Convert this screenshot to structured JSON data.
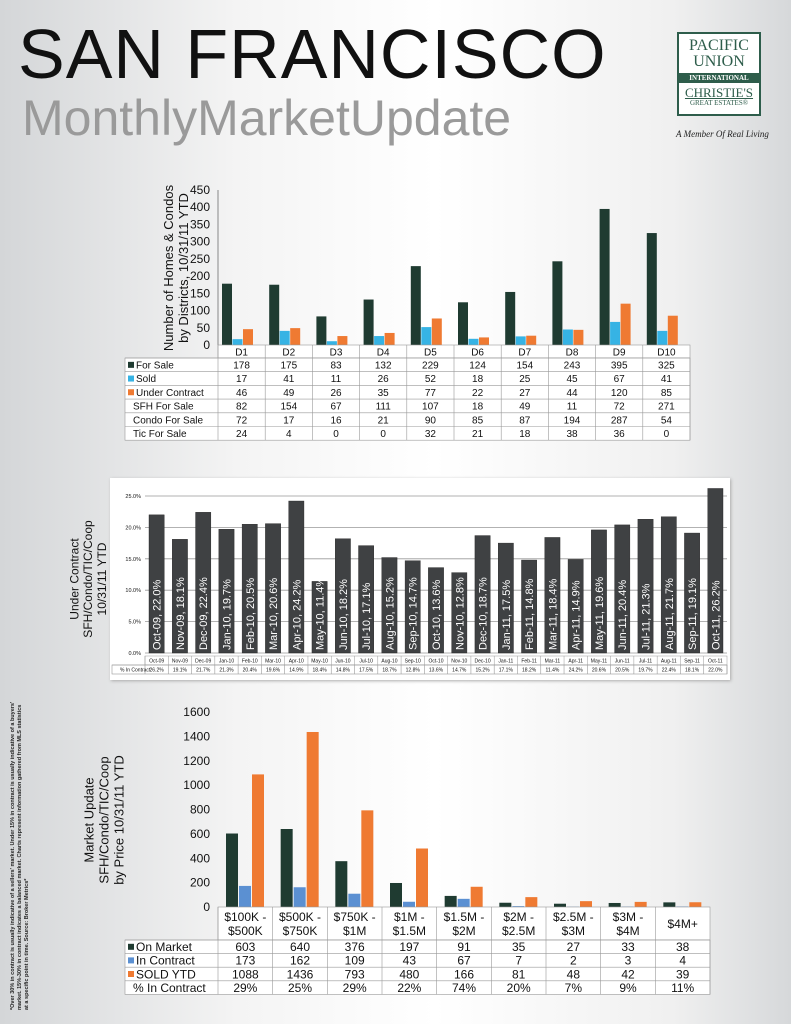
{
  "header": {
    "title": "SAN FRANCISCO",
    "subtitle": "MonthlyMarketUpdate"
  },
  "logo": {
    "line1": "PACIFIC",
    "line2": "UNION",
    "line3": "INTERNATIONAL",
    "line4": "CHRISTIE'S",
    "line5": "GREAT ESTATES®",
    "tagline": "A Member Of Real Living"
  },
  "footnote": "*Over 30% in contract is usually indicative of a sellers' market. Under 15% in contract is usually indicative of a buyers' market. 15%-30% in contract indicates a balanced market. Charts represent information gathered from MLS statistics at a specific point in time. Source: Broker Metrics*",
  "colors": {
    "dark_green": "#1f3b31",
    "cyan": "#36b3e4",
    "orange": "#ef7a32",
    "blue": "#5b90d2",
    "dark_gray": "#3f4143"
  },
  "chart_data": [
    {
      "type": "bar",
      "ylabel": "Number of Homes & Condos\nby Districts, 10/31/11 YTD",
      "ylim": [
        0,
        450
      ],
      "yticks": [
        0,
        50,
        100,
        150,
        200,
        250,
        300,
        350,
        400,
        450
      ],
      "grid": false,
      "categories": [
        "D1",
        "D2",
        "D3",
        "D4",
        "D5",
        "D6",
        "D7",
        "D8",
        "D9",
        "D10"
      ],
      "series": [
        {
          "name": "For Sale",
          "color": "#1f3b31",
          "values": [
            178,
            175,
            83,
            132,
            229,
            124,
            154,
            243,
            395,
            325
          ]
        },
        {
          "name": "Sold",
          "color": "#36b3e4",
          "values": [
            17,
            41,
            11,
            26,
            52,
            18,
            25,
            45,
            67,
            41
          ]
        },
        {
          "name": "Under Contract",
          "color": "#ef7a32",
          "values": [
            46,
            49,
            26,
            35,
            77,
            22,
            27,
            44,
            120,
            85
          ]
        }
      ],
      "table_extra": [
        {
          "name": "SFH For Sale",
          "values": [
            82,
            154,
            67,
            111,
            107,
            18,
            49,
            11,
            72,
            271
          ]
        },
        {
          "name": "Condo For Sale",
          "values": [
            72,
            17,
            16,
            21,
            90,
            85,
            87,
            194,
            287,
            54
          ]
        },
        {
          "name": "Tic For Sale",
          "values": [
            24,
            4,
            0,
            0,
            32,
            21,
            18,
            38,
            36,
            0
          ]
        }
      ]
    },
    {
      "type": "bar",
      "ylabel": "Under Contract\nSFH/Condo/TIC/Coop\n10/31/11 YTD",
      "ylim": [
        0,
        25
      ],
      "yticks": [
        "0.0%",
        "5.0%",
        "10.0%",
        "15.0%",
        "20.0%",
        "25.0%"
      ],
      "grid": true,
      "categories": [
        "Oct-09",
        "Nov-09",
        "Dec-09",
        "Jan-10",
        "Feb-10",
        "Mar-10",
        "Apr-10",
        "May-10",
        "Jun-10",
        "Jul-10",
        "Aug-10",
        "Sep-10",
        "Oct-10",
        "Nov-10",
        "Dec-10",
        "Jan-11",
        "Feb-11",
        "Mar-11",
        "Apr-11",
        "May-11",
        "Jun-11",
        "Jul-11",
        "Aug-11",
        "Sep-11",
        "Oct-11"
      ],
      "series": [
        {
          "color": "#3f4143",
          "values": [
            22.0,
            18.1,
            22.4,
            19.7,
            20.5,
            20.6,
            24.2,
            11.4,
            18.2,
            17.1,
            15.2,
            14.7,
            13.6,
            12.8,
            18.7,
            17.5,
            14.8,
            18.4,
            14.9,
            19.6,
            20.4,
            21.3,
            21.7,
            19.1,
            26.2
          ]
        }
      ],
      "data_labels": [
        "Oct-09, 22.0%",
        "Nov-09, 18.1%",
        "Dec-09, 22.4%",
        "Jan-10, 19.7%",
        "Feb-10, 20.5%",
        "Mar-10, 20.6%",
        "Apr-10, 24.2%",
        "May-10, 11.4%",
        "Jun-10, 18.2%",
        "Jul-10, 17.1%",
        "Aug-10, 15.2%",
        "Sep-10, 14.7%",
        "Oct-10, 13.6%",
        "Nov-10, 12.8%",
        "Dec-10, 18.7%",
        "Jan-11, 17.5%",
        "Feb-11, 14.8%",
        "Mar-11, 18.4%",
        "Apr-11, 14.9%",
        "May-11, 19.6%",
        "Jun-11, 20.4%",
        "Jul-11, 21.3%",
        "Aug-11, 21.7%",
        "Sep-11, 19.1%",
        "Oct-11, 26.2%"
      ],
      "table_row": {
        "name": "% In Contract",
        "values": [
          "26.2%",
          "19.1%",
          "21.7%",
          "21.3%",
          "20.4%",
          "19.6%",
          "14.9%",
          "18.4%",
          "14.8%",
          "17.5%",
          "18.7%",
          "12.8%",
          "13.6%",
          "14.7%",
          "15.2%",
          "17.1%",
          "18.2%",
          "11.4%",
          "24.2%",
          "20.6%",
          "20.5%",
          "19.7%",
          "22.4%",
          "18.1%",
          "22.0%"
        ]
      }
    },
    {
      "type": "bar",
      "ylabel": "Market Update\nSFH/Condo/TIC/Coop\nby Price 10/31/11 YTD",
      "ylim": [
        0,
        1600
      ],
      "yticks": [
        0,
        200,
        400,
        600,
        800,
        1000,
        1200,
        1400,
        1600
      ],
      "grid": false,
      "categories": [
        "$100K -\n$500K",
        "$500K -\n$750K",
        "$750K -\n$1M",
        "$1M -\n$1.5M",
        "$1.5M -\n$2M",
        "$2M -\n$2.5M",
        "$2.5M -\n$3M",
        "$3M -\n$4M",
        "$4M+"
      ],
      "series": [
        {
          "name": "On Market",
          "color": "#1f3b31",
          "values": [
            603,
            640,
            376,
            197,
            91,
            35,
            27,
            33,
            38
          ]
        },
        {
          "name": "In Contract",
          "color": "#5b90d2",
          "values": [
            173,
            162,
            109,
            43,
            67,
            7,
            2,
            3,
            4
          ]
        },
        {
          "name": "SOLD YTD",
          "color": "#ef7a32",
          "values": [
            1088,
            1436,
            793,
            480,
            166,
            81,
            48,
            42,
            39
          ]
        }
      ],
      "table_extra": [
        {
          "name": "% In Contract",
          "values": [
            "29%",
            "25%",
            "29%",
            "22%",
            "74%",
            "20%",
            "7%",
            "9%",
            "11%"
          ]
        }
      ]
    }
  ]
}
